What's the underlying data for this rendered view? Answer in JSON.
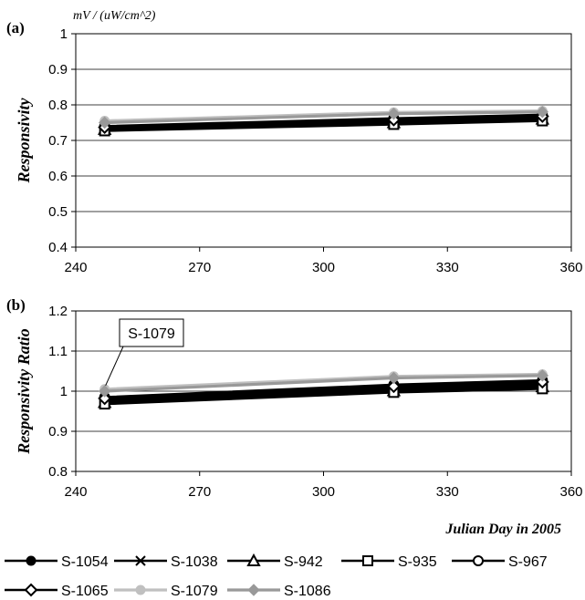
{
  "chart_data": [
    {
      "panel": "(a)",
      "type": "line",
      "unit_label": "mV / (uW/cm^2)",
      "ylabel": "Responsivity",
      "xlabel": "",
      "xlim": [
        240,
        360
      ],
      "ylim": [
        0.4,
        1
      ],
      "xticks": [
        "240",
        "270",
        "300",
        "330",
        "360"
      ],
      "yticks": [
        "0.4",
        "0.5",
        "0.6",
        "0.7",
        "0.8",
        "0.9",
        "1"
      ],
      "x": [
        247,
        317,
        353
      ],
      "series": [
        {
          "name": "S-1054",
          "values": [
            0.735,
            0.755,
            0.765
          ]
        },
        {
          "name": "S-1038",
          "values": [
            0.733,
            0.753,
            0.762
          ]
        },
        {
          "name": "S-942",
          "values": [
            0.731,
            0.75,
            0.76
          ]
        },
        {
          "name": "S-935",
          "values": [
            0.727,
            0.745,
            0.755
          ]
        },
        {
          "name": "S-967",
          "values": [
            0.74,
            0.762,
            0.772
          ]
        },
        {
          "name": "S-1065",
          "values": [
            0.737,
            0.758,
            0.768
          ]
        },
        {
          "name": "S-1079",
          "values": [
            0.755,
            0.779,
            0.783
          ]
        },
        {
          "name": "S-1086",
          "values": [
            0.75,
            0.775,
            0.78
          ]
        }
      ],
      "grid": true
    },
    {
      "panel": "(b)",
      "type": "line",
      "ylabel": "Responsivity Ratio",
      "xlabel": "Julian Day in 2005",
      "xlim": [
        240,
        360
      ],
      "ylim": [
        0.8,
        1.2
      ],
      "xticks": [
        "240",
        "270",
        "300",
        "330",
        "360"
      ],
      "yticks": [
        "0.8",
        "0.9",
        "1",
        "1.1",
        "1.2"
      ],
      "x": [
        247,
        317,
        353
      ],
      "annotation": "S-1079",
      "series": [
        {
          "name": "S-1054",
          "values": [
            0.978,
            1.008,
            1.018
          ]
        },
        {
          "name": "S-1038",
          "values": [
            0.975,
            1.004,
            1.014
          ]
        },
        {
          "name": "S-942",
          "values": [
            0.972,
            1.001,
            1.011
          ]
        },
        {
          "name": "S-935",
          "values": [
            0.968,
            0.997,
            1.006
          ]
        },
        {
          "name": "S-967",
          "values": [
            0.985,
            1.016,
            1.027
          ]
        },
        {
          "name": "S-1065",
          "values": [
            0.982,
            1.012,
            1.023
          ]
        },
        {
          "name": "S-1079",
          "values": [
            1.005,
            1.037,
            1.042
          ]
        },
        {
          "name": "S-1086",
          "values": [
            1.0,
            1.033,
            1.039
          ]
        }
      ],
      "grid": true
    }
  ],
  "legend": {
    "items": [
      {
        "name": "S-1054",
        "marker": "filled-circle",
        "color": "#000000"
      },
      {
        "name": "S-1038",
        "marker": "x-cross",
        "color": "#000000"
      },
      {
        "name": "S-942",
        "marker": "open-triangle",
        "color": "#000000"
      },
      {
        "name": "S-935",
        "marker": "open-square",
        "color": "#000000"
      },
      {
        "name": "S-967",
        "marker": "open-circle",
        "color": "#000000"
      },
      {
        "name": "S-1065",
        "marker": "open-diamond",
        "color": "#000000"
      },
      {
        "name": "S-1079",
        "marker": "filled-circle",
        "color": "#c0c0c0"
      },
      {
        "name": "S-1086",
        "marker": "filled-diamond",
        "color": "#999999"
      }
    ]
  }
}
